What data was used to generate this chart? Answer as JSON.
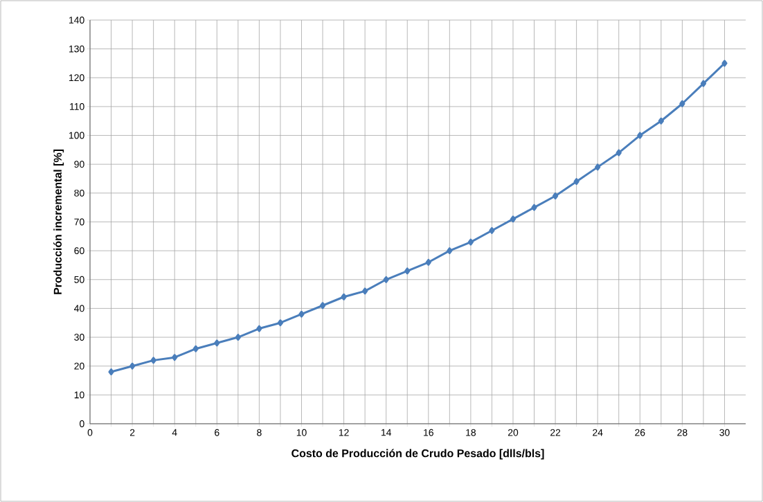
{
  "chart_data": {
    "type": "line",
    "xlabel": "Costo de Producción de Crudo Pesado [dlls/bls]",
    "ylabel": "Producción incremental [%]",
    "x": [
      1,
      2,
      3,
      4,
      5,
      6,
      7,
      8,
      9,
      10,
      11,
      12,
      13,
      14,
      15,
      16,
      17,
      18,
      19,
      20,
      21,
      22,
      23,
      24,
      25,
      26,
      27,
      28,
      29,
      30
    ],
    "series": [
      {
        "color": "#4a7ebb",
        "values": [
          18,
          20,
          22,
          23,
          26,
          28,
          30,
          33,
          35,
          38,
          41,
          44,
          46,
          50,
          53,
          56,
          60,
          63,
          67,
          71,
          75,
          79,
          84,
          89,
          94,
          100,
          105,
          111,
          118,
          125
        ]
      }
    ],
    "xlim": [
      0,
      31
    ],
    "xticks": [
      0,
      {
        "value": 1,
        "label": null
      },
      2,
      {
        "value": 3,
        "label": null
      },
      4,
      {
        "value": 5,
        "label": null
      },
      6,
      {
        "value": 7,
        "label": null
      },
      8,
      {
        "value": 9,
        "label": null
      },
      10,
      {
        "value": 11,
        "label": null
      },
      12,
      {
        "value": 13,
        "label": null
      },
      14,
      {
        "value": 15,
        "label": null
      },
      16,
      {
        "value": 17,
        "label": null
      },
      18,
      {
        "value": 19,
        "label": null
      },
      20,
      {
        "value": 21,
        "label": null
      },
      22,
      {
        "value": 23,
        "label": null
      },
      24,
      {
        "value": 25,
        "label": null
      },
      26,
      {
        "value": 27,
        "label": null
      },
      28,
      {
        "value": 29,
        "label": null
      },
      30
    ],
    "ylim": [
      0,
      140
    ],
    "yticks": [
      0,
      10,
      20,
      30,
      40,
      50,
      60,
      70,
      80,
      90,
      100,
      110,
      120,
      130,
      140
    ],
    "grid": true,
    "marker": "diamond",
    "line_style": "solid"
  }
}
